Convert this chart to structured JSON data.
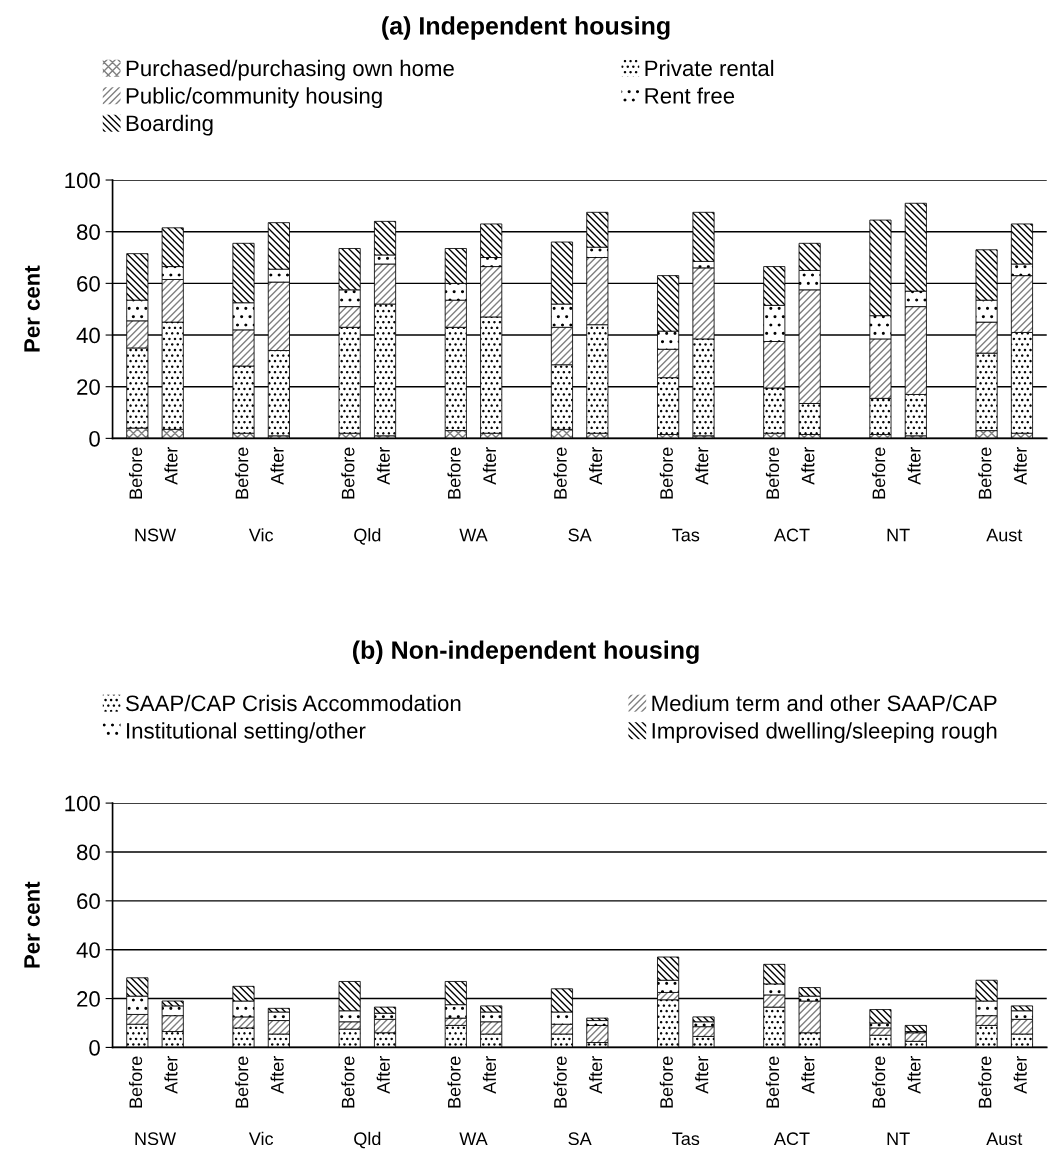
{
  "chart_data": [
    {
      "type": "bar",
      "title": "(a) Independent housing",
      "ylabel": "Per cent",
      "stacked": true,
      "categories": [
        "Before",
        "After",
        "Before",
        "After",
        "Before",
        "After",
        "Before",
        "After",
        "Before",
        "After",
        "Before",
        "After",
        "Before",
        "After",
        "Before",
        "After",
        "Before",
        "After"
      ],
      "annotations": [
        "NSW",
        "Vic",
        "Qld",
        "WA",
        "SA",
        "Tas",
        "ACT",
        "NT",
        "Aust"
      ],
      "series": [
        {
          "name": "Purchased/purchasing own home",
          "color": "#808080",
          "values": [
            4,
            3.5,
            2,
            1,
            2,
            1,
            3,
            2,
            3.5,
            2,
            1.5,
            1,
            2,
            1.5,
            1.5,
            1,
            3,
            2
          ]
        },
        {
          "name": "Private rental",
          "color": "#000000",
          "values": [
            31,
            41.5,
            26,
            33,
            41,
            51,
            40,
            45,
            25,
            42,
            22,
            37.5,
            17.5,
            12,
            14,
            16,
            30,
            39
          ]
        },
        {
          "name": "Public/community housing",
          "color": "#808080",
          "values": [
            10.5,
            16.5,
            14,
            26.5,
            8,
            15.5,
            10.5,
            19.5,
            14.5,
            26,
            11,
            27.5,
            18,
            44,
            23,
            34,
            12,
            22
          ]
        },
        {
          "name": "Rent free",
          "color": "#000000",
          "values": [
            8,
            5,
            10.5,
            5,
            6.5,
            3.5,
            6.5,
            3.5,
            9,
            4,
            7,
            2.5,
            14,
            7.5,
            9,
            6,
            8.5,
            4.5
          ]
        },
        {
          "name": "Boarding",
          "color": "#000000",
          "values": [
            18,
            15,
            23,
            18,
            16,
            13,
            13.5,
            13,
            24,
            13.5,
            21.5,
            19,
            15,
            10.5,
            37,
            34,
            19.5,
            15.5
          ]
        }
      ],
      "ylim": [
        0,
        100
      ],
      "yticks": [
        0,
        20,
        40,
        60,
        80,
        100
      ],
      "grid": "y",
      "legend": "top left"
    },
    {
      "type": "bar",
      "title": "(b) Non-independent housing",
      "ylabel": "Per cent",
      "stacked": true,
      "categories": [
        "Before",
        "After",
        "Before",
        "After",
        "Before",
        "After",
        "Before",
        "After",
        "Before",
        "After",
        "Before",
        "After",
        "Before",
        "After",
        "Before",
        "After",
        "Before",
        "After"
      ],
      "annotations": [
        "NSW",
        "Vic",
        "Qld",
        "WA",
        "SA",
        "Tas",
        "ACT",
        "NT",
        "Aust"
      ],
      "series": [
        {
          "name": "SAAP/CAP Crisis Accommodation",
          "color": "#000000",
          "values": [
            9.5,
            6.5,
            8,
            5.5,
            7.5,
            6,
            9,
            5.5,
            5.5,
            2,
            19.5,
            4.5,
            16.5,
            6,
            5,
            2.5,
            9,
            5.5
          ]
        },
        {
          "name": "Medium term and other SAAP/CAP",
          "color": "#808080",
          "values": [
            4,
            6.5,
            4.5,
            5.5,
            3,
            5.5,
            3,
            5,
            4,
            7,
            3,
            4,
            5,
            13,
            3,
            3.5,
            4,
            6
          ]
        },
        {
          "name": "Institutional setting/other",
          "color": "#000000",
          "values": [
            7.5,
            4,
            6.5,
            3.5,
            4.5,
            2.5,
            5.5,
            4,
            5,
            2,
            5,
            2,
            4.5,
            2,
            2,
            0.5,
            6,
            3.5
          ]
        },
        {
          "name": "Improvised dwelling/sleeping rough",
          "color": "#000000",
          "values": [
            7.5,
            2,
            6,
            1.5,
            12,
            2.5,
            9.5,
            2.5,
            9.5,
            1,
            9.5,
            2,
            8,
            3.5,
            5.5,
            2.5,
            8.5,
            2
          ]
        }
      ],
      "ylim": [
        0,
        100
      ],
      "yticks": [
        0,
        20,
        40,
        60,
        80,
        100
      ],
      "grid": "y",
      "legend": "top left"
    }
  ]
}
